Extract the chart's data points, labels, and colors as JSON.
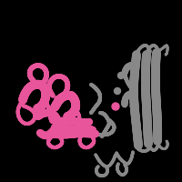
{
  "background_color": "#000000",
  "figsize": [
    2.0,
    2.0
  ],
  "dpi": 100,
  "pink_color": "#e8559a",
  "gray_color": "#888888",
  "dark_gray": "#555555",
  "light_gray": "#aaaaaa"
}
